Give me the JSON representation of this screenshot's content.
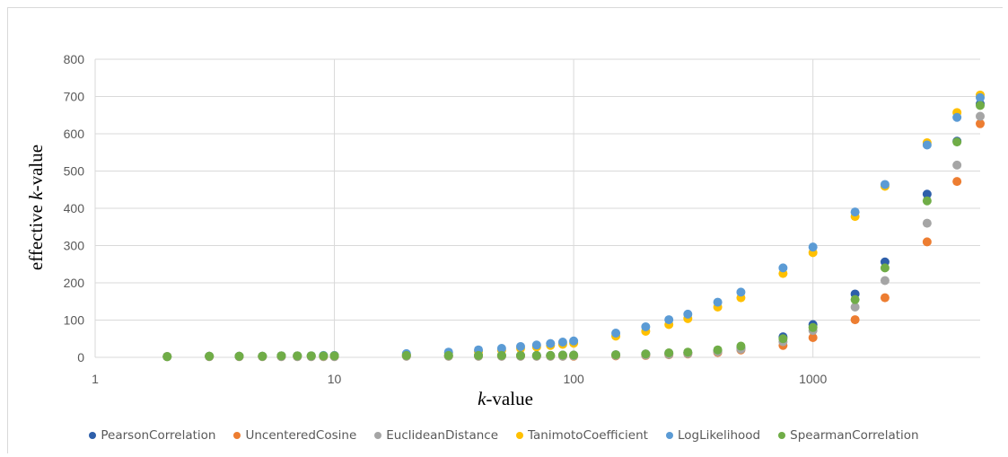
{
  "chart_data": {
    "type": "scatter",
    "title": "",
    "xlabel_italic": "k",
    "xlabel_rest": "-value",
    "ylabel_prefix": "effective ",
    "ylabel_italic": "k",
    "ylabel_rest": "-value",
    "x_scale": "log",
    "xlim": [
      1,
      5000
    ],
    "ylim": [
      0,
      800
    ],
    "x_ticks": [
      "1",
      "10",
      "100",
      "1000"
    ],
    "y_ticks": [
      "0",
      "100",
      "200",
      "300",
      "400",
      "500",
      "600",
      "700",
      "800"
    ],
    "grid": true,
    "legend_position": "bottom",
    "x": [
      2,
      3,
      4,
      5,
      6,
      7,
      8,
      9,
      10,
      20,
      30,
      40,
      50,
      60,
      70,
      80,
      90,
      100,
      150,
      200,
      250,
      300,
      400,
      500,
      750,
      1000,
      1500,
      2000,
      3000,
      4000,
      5000
    ],
    "series": [
      {
        "name": "PearsonCorrelation",
        "color": "#2e5faa",
        "values": [
          2,
          3,
          3,
          3,
          4,
          4,
          4,
          4,
          4,
          5,
          5,
          5,
          5,
          5,
          5,
          5,
          6,
          6,
          7,
          9,
          11,
          13,
          18,
          25,
          55,
          88,
          170,
          256,
          438,
          580,
          680
        ]
      },
      {
        "name": "UncenteredCosine",
        "color": "#ed7d31",
        "values": [
          2,
          2,
          2,
          2,
          2,
          2,
          2,
          2,
          2,
          3,
          3,
          3,
          3,
          3,
          3,
          3,
          3,
          3,
          4,
          5,
          7,
          9,
          13,
          20,
          32,
          53,
          101,
          160,
          310,
          472,
          627
        ]
      },
      {
        "name": "EuclideanDistance",
        "color": "#a5a5a5",
        "values": [
          2,
          2,
          2,
          2,
          2,
          2,
          2,
          2,
          2,
          3,
          3,
          3,
          3,
          3,
          3,
          3,
          3,
          4,
          5,
          6,
          8,
          10,
          15,
          22,
          42,
          72,
          135,
          206,
          360,
          516,
          647
        ]
      },
      {
        "name": "TanimotoCoefficient",
        "color": "#ffc000",
        "values": [
          2,
          3,
          3,
          3,
          4,
          4,
          4,
          4,
          5,
          8,
          11,
          15,
          19,
          24,
          28,
          32,
          35,
          38,
          57,
          70,
          88,
          104,
          135,
          160,
          225,
          281,
          378,
          459,
          576,
          657,
          704
        ]
      },
      {
        "name": "LogLikelihood",
        "color": "#5b9bd5",
        "values": [
          2,
          3,
          3,
          3,
          4,
          4,
          4,
          5,
          5,
          10,
          14,
          20,
          24,
          29,
          33,
          37,
          41,
          44,
          65,
          82,
          101,
          116,
          148,
          175,
          240,
          296,
          390,
          464,
          570,
          644,
          697
        ]
      },
      {
        "name": "SpearmanCorrelation",
        "color": "#70ad47",
        "values": [
          2,
          3,
          3,
          3,
          4,
          4,
          4,
          4,
          4,
          5,
          5,
          5,
          5,
          5,
          5,
          5,
          6,
          6,
          7,
          9,
          12,
          14,
          20,
          30,
          50,
          80,
          155,
          240,
          420,
          578,
          676
        ]
      }
    ]
  }
}
